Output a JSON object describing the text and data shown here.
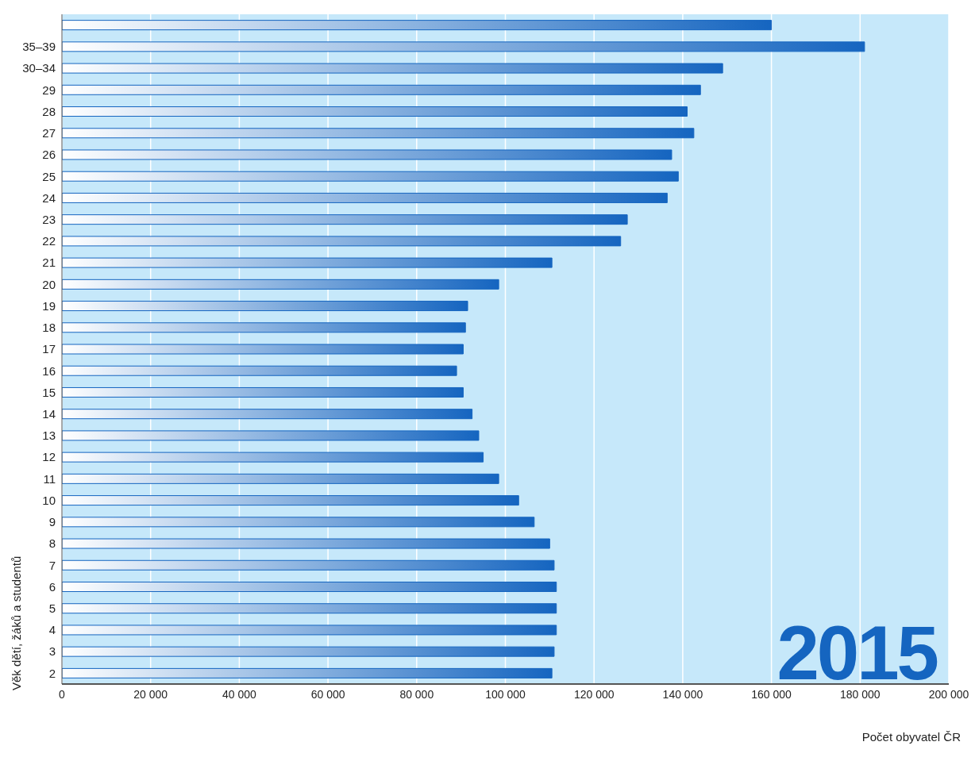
{
  "chart_data": {
    "type": "bar",
    "orientation": "horizontal",
    "xlabel": "Počet obyvatel ČR",
    "ylabel": "Věk dětí, žáků a studentů",
    "annotations": [
      "2015"
    ],
    "categories": [
      null,
      "35–39",
      "30–34",
      "29",
      "28",
      "27",
      "26",
      "25",
      "24",
      "23",
      "22",
      "21",
      "20",
      "19",
      "18",
      "17",
      "16",
      "15",
      "14",
      "13",
      "12",
      "11",
      "10",
      "9",
      "8",
      "7",
      "6",
      "5",
      "4",
      "3",
      "2"
    ],
    "values": [
      160000,
      181000,
      149000,
      144000,
      141000,
      142500,
      137500,
      139000,
      136500,
      127500,
      126000,
      110500,
      98500,
      91500,
      91000,
      90500,
      89000,
      90500,
      92500,
      94000,
      95000,
      98500,
      103000,
      106500,
      110000,
      111000,
      111500,
      111500,
      111500,
      111000,
      110500
    ],
    "color": "#1565c0",
    "xlim": [
      0,
      200000
    ],
    "xticks": [
      0,
      {
        "value": 20000,
        "label": "20 000"
      },
      {
        "value": 40000,
        "label": "40 000"
      },
      {
        "value": 60000,
        "label": "60 000"
      },
      {
        "value": 80000,
        "label": "80 000"
      },
      {
        "value": 100000,
        "label": "100 000"
      },
      {
        "value": 120000,
        "label": "120 000"
      },
      {
        "value": 140000,
        "label": "140 000"
      },
      {
        "value": 160000,
        "label": "160 000"
      },
      {
        "value": 180000,
        "label": "180 000"
      },
      {
        "value": 200000,
        "label": "200 000"
      }
    ],
    "grid": "x"
  }
}
